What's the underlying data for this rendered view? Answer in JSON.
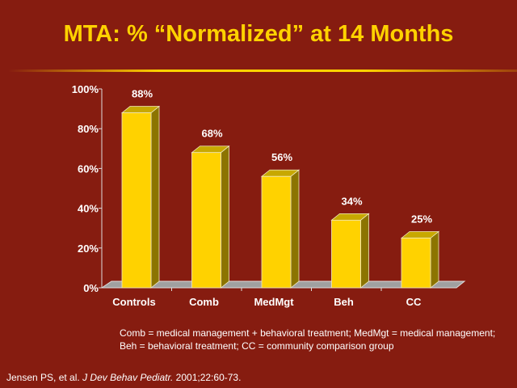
{
  "title": "MTA: % “Normalized” at 14 Months",
  "notes": [
    "Comb = medical management + behavioral treatment; MedMgt = medical management;",
    "Beh = behavioral treatment; CC = community comparison group"
  ],
  "citation": {
    "authors": "Jensen PS, et al. ",
    "journal": "J Dev Behav Pediatr.",
    "rest": " 2001;22:60-73."
  },
  "colors": {
    "background": "#861c10",
    "title": "#ffd200",
    "bar_front": "#ffd200",
    "bar_side": "#8c7400",
    "bar_top": "#c8a800",
    "floor": "#a0a0a0"
  },
  "chart_data": {
    "type": "bar",
    "style": "3d",
    "categories": [
      "Controls",
      "Comb",
      "MedMgt",
      "Beh",
      "CC"
    ],
    "values": [
      88,
      68,
      56,
      34,
      25
    ],
    "data_labels": [
      "88%",
      "68%",
      "56%",
      "34%",
      "25%"
    ],
    "yticks": [
      "0%",
      "20%",
      "40%",
      "60%",
      "80%",
      "100%"
    ],
    "ylim": [
      0,
      100
    ],
    "grid": false,
    "legend": "none"
  }
}
